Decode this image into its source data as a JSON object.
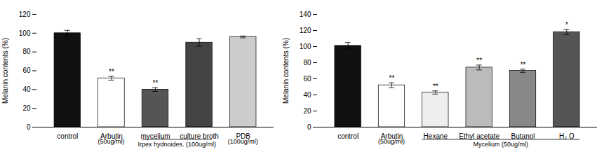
{
  "chart_data": [
    {
      "type": "bar",
      "categories": [
        "control",
        "Arbutin",
        "mycelium",
        "culture broth",
        "PDB"
      ],
      "values": [
        100,
        52,
        40,
        90,
        96
      ],
      "errors": [
        3,
        2,
        2,
        4,
        1
      ],
      "colors": [
        "#111111",
        "#ffffff",
        "#555555",
        "#444444",
        "#cccccc"
      ],
      "ylabel": "Melanin contents (%)",
      "ylim": [
        0,
        120
      ],
      "yticks": [
        0,
        20,
        40,
        60,
        80,
        100,
        120
      ],
      "grid": false,
      "annotations": [
        {
          "category": "Arbutin",
          "text": "**"
        },
        {
          "category": "mycelium",
          "text": "**"
        }
      ],
      "group_labels": [
        {
          "categories": [
            "Arbutin"
          ],
          "text": "(50ug/ml)"
        },
        {
          "categories": [
            "mycelium",
            "culture broth"
          ],
          "text": "Irpex hydnoides. (100ug/ml)"
        },
        {
          "categories": [
            "PDB"
          ],
          "text": "(100ug/ml)"
        }
      ]
    },
    {
      "type": "bar",
      "categories": [
        "control",
        "Arbutin",
        "Hexane",
        "Ethyl acetate",
        "Butanol",
        "H₂ O"
      ],
      "values": [
        101,
        52,
        43,
        74,
        70,
        118
      ],
      "errors": [
        4,
        3,
        2,
        3,
        2,
        3
      ],
      "colors": [
        "#111111",
        "#ffffff",
        "#eeeeee",
        "#bbbbbb",
        "#888888",
        "#555555"
      ],
      "ylabel": "Melanin contents (%)",
      "ylim": [
        0,
        140
      ],
      "yticks": [
        0,
        20,
        40,
        60,
        80,
        100,
        120,
        140
      ],
      "grid": false,
      "annotations": [
        {
          "category": "Arbutin",
          "text": "**"
        },
        {
          "category": "Hexane",
          "text": "**"
        },
        {
          "category": "Ethyl acetate",
          "text": "**"
        },
        {
          "category": "Butanol",
          "text": "**"
        },
        {
          "category": "H₂ O",
          "text": "*"
        }
      ],
      "group_labels": [
        {
          "categories": [
            "Arbutin"
          ],
          "text": "(50ug/ml)"
        },
        {
          "categories": [
            "Hexane",
            "Ethyl acetate",
            "Butanol",
            "H₂ O"
          ],
          "text": "Mycelium (50ug/ml)"
        }
      ]
    }
  ]
}
